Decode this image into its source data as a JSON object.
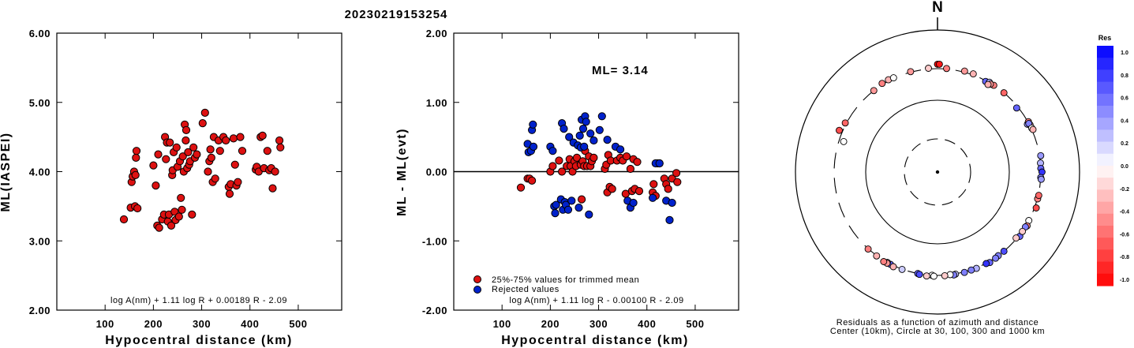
{
  "title": "20230219153254",
  "chart_data": [
    {
      "type": "scatter",
      "panel": "left",
      "xlabel": "Hypocentral distance (km)",
      "ylabel": "ML(IASPEI)",
      "xlim": [
        0,
        590
      ],
      "ylim": [
        2.0,
        6.0
      ],
      "xticks": [
        "100",
        "200",
        "300",
        "400",
        "500"
      ],
      "yticks": [
        "2.00",
        "3.00",
        "4.00",
        "5.00",
        "6.00"
      ],
      "formula": "log A(nm) + 1.11 log R + 0.00189 R - 2.09",
      "series": [
        {
          "color": "#dd1111",
          "points": [
            [
              139,
              3.31
            ],
            [
              153,
              3.48
            ],
            [
              155,
              3.85
            ],
            [
              157,
              3.93
            ],
            [
              160,
              4.0
            ],
            [
              162,
              3.5
            ],
            [
              163,
              3.95
            ],
            [
              164,
              4.2
            ],
            [
              165,
              4.3
            ],
            [
              167,
              3.47
            ],
            [
              200,
              4.09
            ],
            [
              205,
              3.8
            ],
            [
              208,
              3.22
            ],
            [
              210,
              4.25
            ],
            [
              212,
              3.19
            ],
            [
              218,
              3.31
            ],
            [
              222,
              3.38
            ],
            [
              224,
              4.5
            ],
            [
              226,
              4.18
            ],
            [
              228,
              4.42
            ],
            [
              230,
              3.28
            ],
            [
              232,
              3.38
            ],
            [
              234,
              4.42
            ],
            [
              237,
              3.22
            ],
            [
              239,
              3.95
            ],
            [
              240,
              4.02
            ],
            [
              242,
              4.28
            ],
            [
              244,
              3.42
            ],
            [
              246,
              3.3
            ],
            [
              248,
              4.35
            ],
            [
              250,
              4.07
            ],
            [
              253,
              3.35
            ],
            [
              255,
              4.15
            ],
            [
              257,
              3.62
            ],
            [
              259,
              3.45
            ],
            [
              261,
              4.22
            ],
            [
              263,
              4.0
            ],
            [
              265,
              4.68
            ],
            [
              267,
              4.45
            ],
            [
              268,
              4.6
            ],
            [
              270,
              4.05
            ],
            [
              272,
              4.28
            ],
            [
              274,
              4.1
            ],
            [
              276,
              4.15
            ],
            [
              280,
              3.38
            ],
            [
              283,
              4.35
            ],
            [
              286,
              4.2
            ],
            [
              290,
              4.25
            ],
            [
              302,
              4.7
            ],
            [
              307,
              4.85
            ],
            [
              313,
              4.0
            ],
            [
              316,
              4.15
            ],
            [
              318,
              4.32
            ],
            [
              320,
              4.2
            ],
            [
              323,
              3.85
            ],
            [
              325,
              4.5
            ],
            [
              328,
              3.9
            ],
            [
              335,
              4.45
            ],
            [
              338,
              4.3
            ],
            [
              345,
              4.5
            ],
            [
              350,
              4.45
            ],
            [
              356,
              3.78
            ],
            [
              358,
              3.68
            ],
            [
              360,
              3.82
            ],
            [
              366,
              4.48
            ],
            [
              369,
              4.1
            ],
            [
              372,
              3.8
            ],
            [
              375,
              3.85
            ],
            [
              380,
              4.5
            ],
            [
              384,
              4.3
            ],
            [
              412,
              4.03
            ],
            [
              414,
              4.07
            ],
            [
              418,
              4.0
            ],
            [
              422,
              4.5
            ],
            [
              426,
              4.52
            ],
            [
              429,
              4.05
            ],
            [
              436,
              4.3
            ],
            [
              440,
              4.02
            ],
            [
              444,
              4.05
            ],
            [
              447,
              3.76
            ],
            [
              452,
              4.0
            ],
            [
              461,
              4.45
            ],
            [
              463,
              4.35
            ]
          ]
        }
      ]
    },
    {
      "type": "scatter",
      "panel": "middle",
      "xlabel": "Hypocentral distance (km)",
      "ylabel": "ML - ML(evt)",
      "xlim": [
        0,
        590
      ],
      "ylim": [
        -2.0,
        2.0
      ],
      "xticks": [
        "100",
        "200",
        "300",
        "400",
        "500"
      ],
      "yticks": [
        "-2.00",
        "-1.00",
        "0.00",
        "1.00",
        "2.00"
      ],
      "annotation": "ML= 3.14",
      "formula": "log A(nm) + 1.11 log R - 0.00100 R - 2.09",
      "hline": 0.0,
      "series": [
        {
          "name": "25%-75% values for trimmed mean",
          "color": "#dd1111",
          "points": [
            [
              139,
              -0.23
            ],
            [
              153,
              -0.1
            ],
            [
              157,
              -0.1
            ],
            [
              162,
              -0.13
            ],
            [
              200,
              0.0
            ],
            [
              205,
              0.08
            ],
            [
              218,
              0.16
            ],
            [
              224,
              0.0
            ],
            [
              234,
              0.08
            ],
            [
              240,
              0.18
            ],
            [
              242,
              0.08
            ],
            [
              246,
              0.0
            ],
            [
              250,
              0.15
            ],
            [
              253,
              0.08
            ],
            [
              255,
              0.2
            ],
            [
              263,
              0.1
            ],
            [
              265,
              -0.4
            ],
            [
              267,
              0.15
            ],
            [
              270,
              0.08
            ],
            [
              272,
              0.3
            ],
            [
              276,
              0.08
            ],
            [
              280,
              0.22
            ],
            [
              283,
              0.08
            ],
            [
              286,
              0.15
            ],
            [
              290,
              0.2
            ],
            [
              313,
              0.04
            ],
            [
              316,
              0.1
            ],
            [
              318,
              -0.3
            ],
            [
              320,
              0.24
            ],
            [
              323,
              -0.22
            ],
            [
              325,
              0.16
            ],
            [
              328,
              -0.25
            ],
            [
              338,
              0.16
            ],
            [
              345,
              0.2
            ],
            [
              350,
              0.16
            ],
            [
              356,
              -0.32
            ],
            [
              358,
              0.22
            ],
            [
              366,
              0.04
            ],
            [
              369,
              -0.28
            ],
            [
              372,
              0.18
            ],
            [
              375,
              -0.25
            ],
            [
              380,
              0.14
            ],
            [
              384,
              -0.28
            ],
            [
              412,
              -0.3
            ],
            [
              414,
              -0.18
            ],
            [
              418,
              -0.35
            ],
            [
              422,
              0.12
            ],
            [
              426,
              0.12
            ],
            [
              436,
              -0.1
            ],
            [
              440,
              -0.18
            ],
            [
              444,
              -0.25
            ],
            [
              452,
              -0.1
            ],
            [
              461,
              -0.02
            ],
            [
              463,
              -0.15
            ]
          ]
        },
        {
          "name": "Rejected values",
          "color": "#0022cc",
          "points": [
            [
              153,
              0.4
            ],
            [
              155,
              0.28
            ],
            [
              160,
              0.3
            ],
            [
              162,
              0.6
            ],
            [
              164,
              0.68
            ],
            [
              165,
              0.36
            ],
            [
              200,
              0.36
            ],
            [
              205,
              0.3
            ],
            [
              208,
              -0.5
            ],
            [
              210,
              -0.6
            ],
            [
              212,
              -0.48
            ],
            [
              222,
              -0.4
            ],
            [
              224,
              0.7
            ],
            [
              226,
              -0.55
            ],
            [
              228,
              0.62
            ],
            [
              230,
              -0.44
            ],
            [
              232,
              -0.48
            ],
            [
              237,
              -0.55
            ],
            [
              239,
              0.5
            ],
            [
              244,
              -0.42
            ],
            [
              248,
              0.42
            ],
            [
              257,
              0.38
            ],
            [
              259,
              -0.52
            ],
            [
              261,
              0.52
            ],
            [
              263,
              0.35
            ],
            [
              265,
              0.75
            ],
            [
              268,
              0.62
            ],
            [
              270,
              0.36
            ],
            [
              272,
              0.8
            ],
            [
              274,
              0.72
            ],
            [
              280,
              -0.62
            ],
            [
              283,
              0.55
            ],
            [
              290,
              0.45
            ],
            [
              302,
              0.6
            ],
            [
              307,
              0.8
            ],
            [
              318,
              0.46
            ],
            [
              335,
              0.36
            ],
            [
              345,
              0.32
            ],
            [
              360,
              -0.42
            ],
            [
              366,
              -0.52
            ],
            [
              372,
              -0.45
            ],
            [
              412,
              -0.38
            ],
            [
              418,
              0.12
            ],
            [
              426,
              0.12
            ],
            [
              440,
              -0.42
            ],
            [
              447,
              -0.7
            ],
            [
              452,
              -0.45
            ]
          ]
        }
      ],
      "legend": [
        "25%-75% values for trimmed mean",
        "Rejected values"
      ]
    },
    {
      "type": "scatter",
      "panel": "right",
      "projection": "polar",
      "north_label": "N",
      "caption_line1": "Residuals as a function of azimuth and distance",
      "caption_line2": "Center (10km), Circle at 30, 100, 300 and 1000 km",
      "colorbar_title": "Res",
      "colorbar_ticks": [
        "1.0",
        "0.8",
        "0.6",
        "0.4",
        "0.2",
        "0.0",
        "-0.2",
        "-0.4",
        "-0.6",
        "-0.8",
        "-1.0"
      ],
      "points_azimuth_distance_residual": [
        [
          0,
          380,
          -1.0
        ],
        [
          1,
          380,
          -0.9
        ],
        [
          345,
          310,
          -0.4
        ],
        [
          5,
          310,
          -0.5
        ],
        [
          355,
          315,
          -0.2
        ],
        [
          15,
          320,
          -0.4
        ],
        [
          20,
          320,
          -0.3
        ],
        [
          328,
          320,
          -0.5
        ],
        [
          332,
          320,
          -0.3
        ],
        [
          322,
          300,
          -0.4
        ],
        [
          335,
          310,
          0.0
        ],
        [
          28,
          295,
          0.6
        ],
        [
          30,
          305,
          0.3
        ],
        [
          33,
          300,
          -0.5
        ],
        [
          31,
          295,
          -0.4
        ],
        [
          30,
          285,
          -0.3
        ],
        [
          40,
          300,
          -0.6
        ],
        [
          298,
          320,
          -0.6
        ],
        [
          51,
          290,
          0.6
        ],
        [
          62,
          290,
          0.4
        ],
        [
          61,
          310,
          -0.5
        ],
        [
          63,
          310,
          -0.3
        ],
        [
          62,
          300,
          0.5
        ],
        [
          65,
          310,
          0.0
        ],
        [
          66,
          320,
          -0.3
        ],
        [
          293,
          360,
          -0.7
        ],
        [
          288,
          270,
          0.0
        ],
        [
          81,
          320,
          0.4
        ],
        [
          85,
          300,
          0.3
        ],
        [
          88,
          300,
          0.6
        ],
        [
          90,
          320,
          0.8
        ],
        [
          93,
          300,
          0.5
        ],
        [
          94,
          310,
          0.4
        ],
        [
          105,
          305,
          -0.5
        ],
        [
          103,
          310,
          -0.6
        ],
        [
          110,
          330,
          -0.7
        ],
        [
          118,
          300,
          0.0
        ],
        [
          121,
          320,
          -0.5
        ],
        [
          122,
          305,
          0.5
        ],
        [
          128,
          320,
          0.6
        ],
        [
          130,
          295,
          -0.2
        ],
        [
          125,
          305,
          -0.2
        ],
        [
          140,
          300,
          0.7
        ],
        [
          144,
          300,
          0.5
        ],
        [
          146,
          310,
          0.5
        ],
        [
          150,
          320,
          0.6
        ],
        [
          152,
          305,
          0.8
        ],
        [
          158,
          310,
          0.3
        ],
        [
          161,
          305,
          0.5
        ],
        [
          165,
          310,
          0.5
        ],
        [
          170,
          305,
          0.2
        ],
        [
          171,
          315,
          0.5
        ],
        [
          173,
          300,
          0.0
        ],
        [
          176,
          310,
          -0.2
        ],
        [
          183,
          300,
          0.0
        ],
        [
          182,
          315,
          0.0
        ],
        [
          186,
          320,
          -0.2
        ],
        [
          191,
          300,
          0.6
        ],
        [
          190,
          310,
          0.7
        ],
        [
          200,
          305,
          0.2
        ],
        [
          207,
          305,
          0.6
        ],
        [
          209,
          300,
          0.3
        ],
        [
          205,
          320,
          -0.3
        ],
        [
          209,
          315,
          -0.4
        ],
        [
          211,
          320,
          -0.5
        ],
        [
          216,
          305,
          -0.3
        ],
        [
          222,
          305,
          -0.5
        ]
      ]
    }
  ]
}
